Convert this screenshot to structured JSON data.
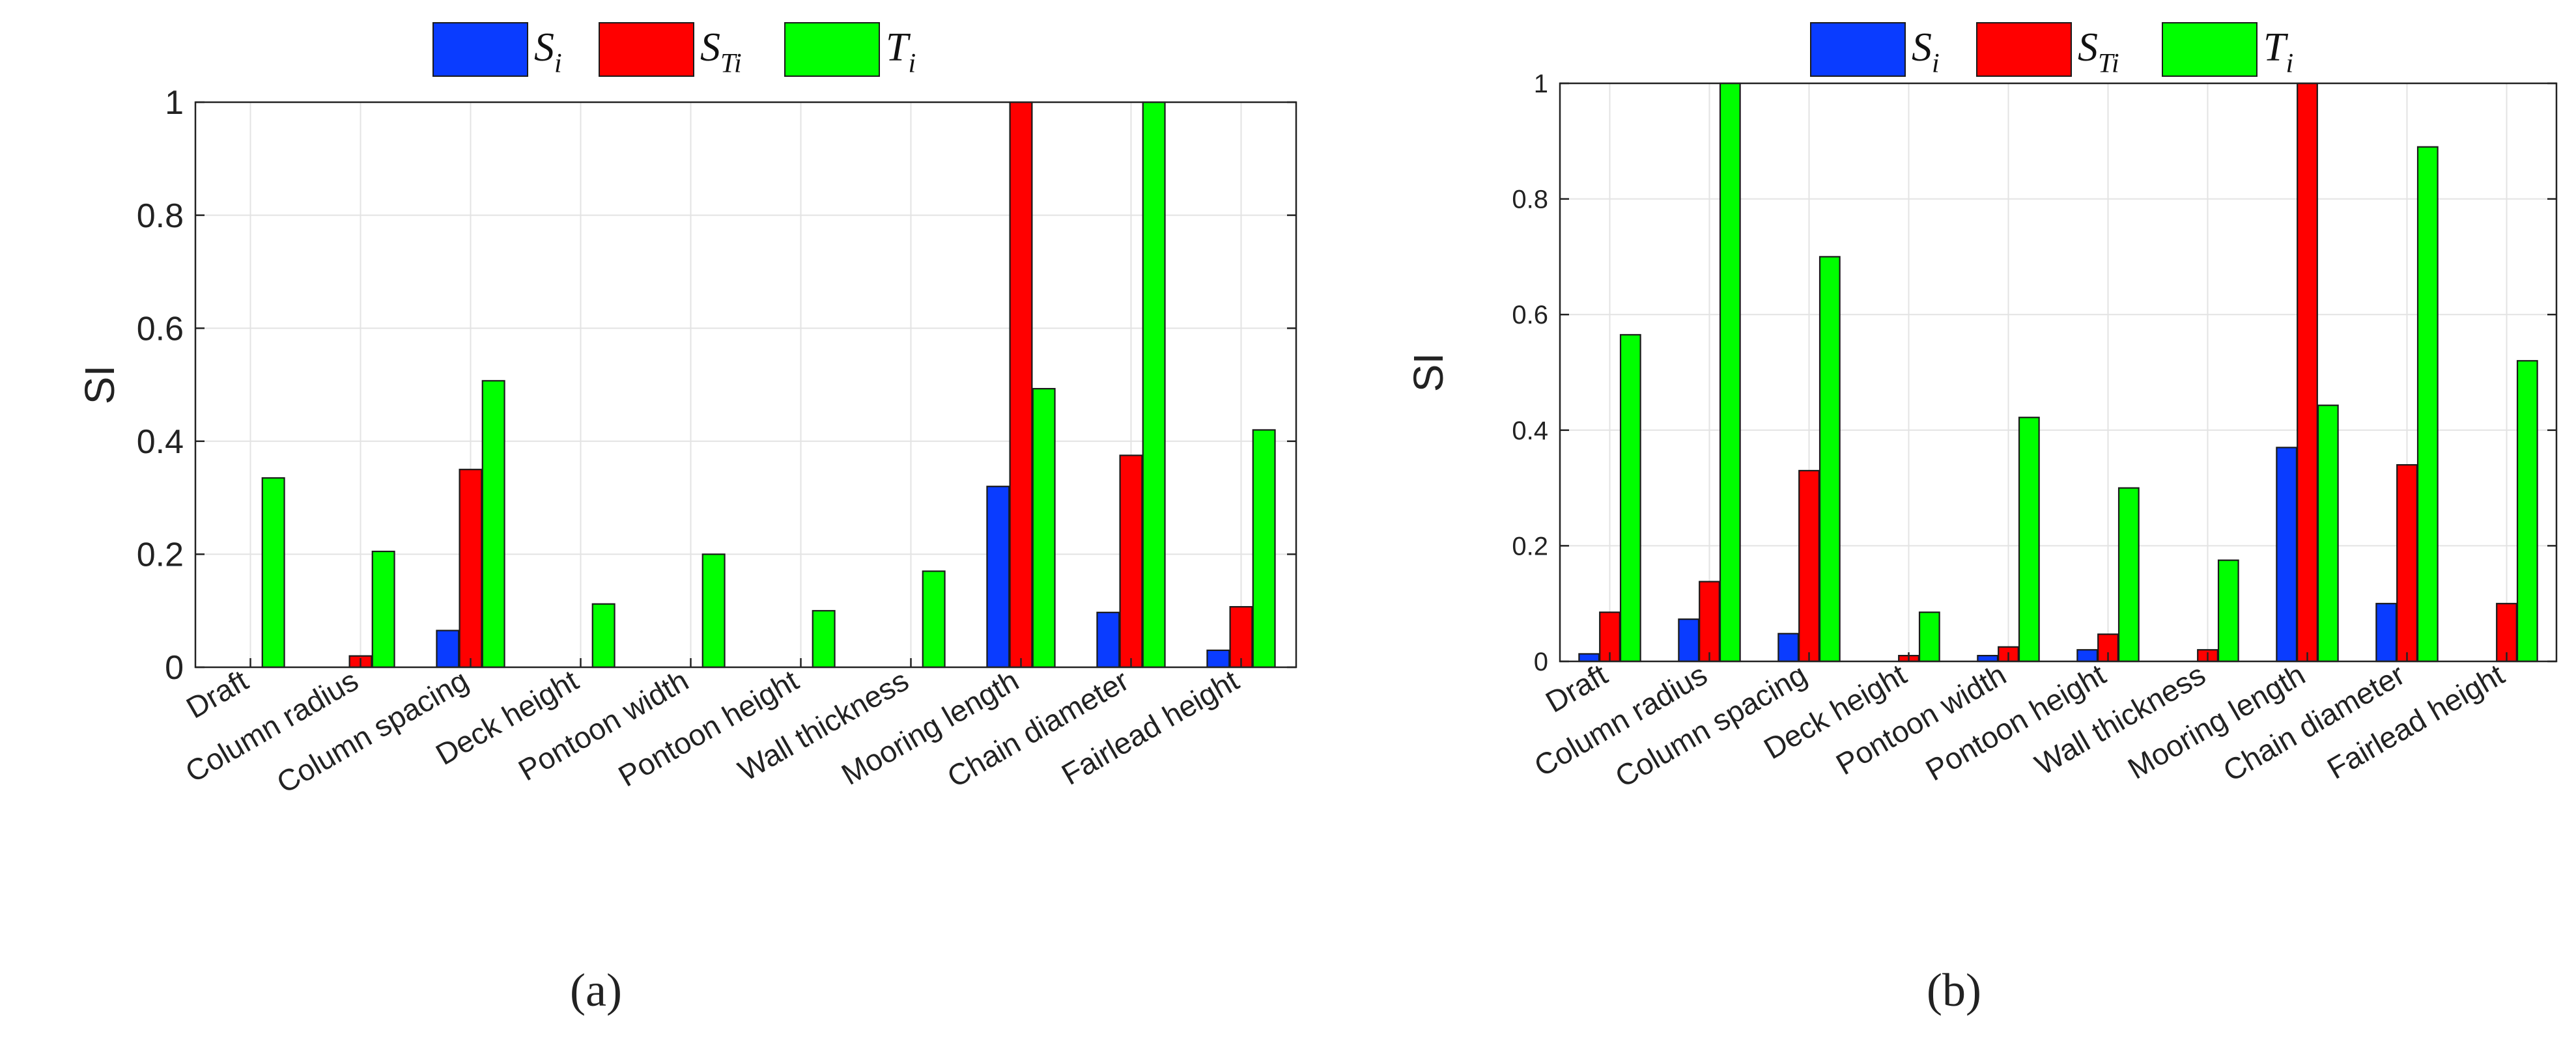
{
  "chart_data": [
    {
      "type": "bar",
      "panel_label": "(a)",
      "ylabel": "SI",
      "xlabel": "",
      "title": "",
      "ylim": [
        0,
        1
      ],
      "yticks": [
        "0",
        "0.2",
        "0.4",
        "0.6",
        "0.8",
        "1"
      ],
      "grid": true,
      "legend_position": "top",
      "categories": [
        "Draft",
        "Column radius",
        "Column spacing",
        "Deck height",
        "Pontoon width",
        "Pontoon height",
        "Wall thickness",
        "Mooring length",
        "Chain diameter",
        "Fairlead height"
      ],
      "series": [
        {
          "name_main": "S",
          "name_sub": "i",
          "color": "#0a3cff",
          "values": [
            0,
            0,
            0.065,
            0,
            0,
            0,
            0,
            0.32,
            0.097,
            0.03
          ]
        },
        {
          "name_main": "S",
          "name_sub": "Ti",
          "color": "#ff0000",
          "values": [
            0,
            0.02,
            0.35,
            0,
            0,
            0,
            0,
            1.0,
            0.375,
            0.107
          ]
        },
        {
          "name_main": "T",
          "name_sub": "i",
          "color": "#00ff00",
          "values": [
            0.335,
            0.205,
            0.507,
            0.112,
            0.2,
            0.1,
            0.17,
            0.493,
            1.0,
            0.42
          ]
        }
      ]
    },
    {
      "type": "bar",
      "panel_label": "(b)",
      "ylabel": "SI",
      "xlabel": "",
      "title": "",
      "ylim": [
        0,
        1
      ],
      "yticks": [
        "0",
        "0.2",
        "0.4",
        "0.6",
        "0.8",
        "1"
      ],
      "grid": true,
      "legend_position": "top",
      "categories": [
        "Draft",
        "Column radius",
        "Column spacing",
        "Deck height",
        "Pontoon width",
        "Pontoon height",
        "Wall thickness",
        "Mooring length",
        "Chain diameter",
        "Fairlead height"
      ],
      "series": [
        {
          "name_main": "S",
          "name_sub": "i",
          "color": "#0a3cff",
          "values": [
            0.013,
            0.073,
            0.048,
            0,
            0.01,
            0.02,
            0,
            0.37,
            0.1,
            0
          ]
        },
        {
          "name_main": "S",
          "name_sub": "Ti",
          "color": "#ff0000",
          "values": [
            0.085,
            0.138,
            0.33,
            0.01,
            0.025,
            0.047,
            0.02,
            1.0,
            0.34,
            0.1
          ]
        },
        {
          "name_main": "T",
          "name_sub": "i",
          "color": "#00ff00",
          "values": [
            0.565,
            1.0,
            0.7,
            0.085,
            0.422,
            0.3,
            0.175,
            0.443,
            0.89,
            0.52
          ]
        }
      ]
    }
  ]
}
